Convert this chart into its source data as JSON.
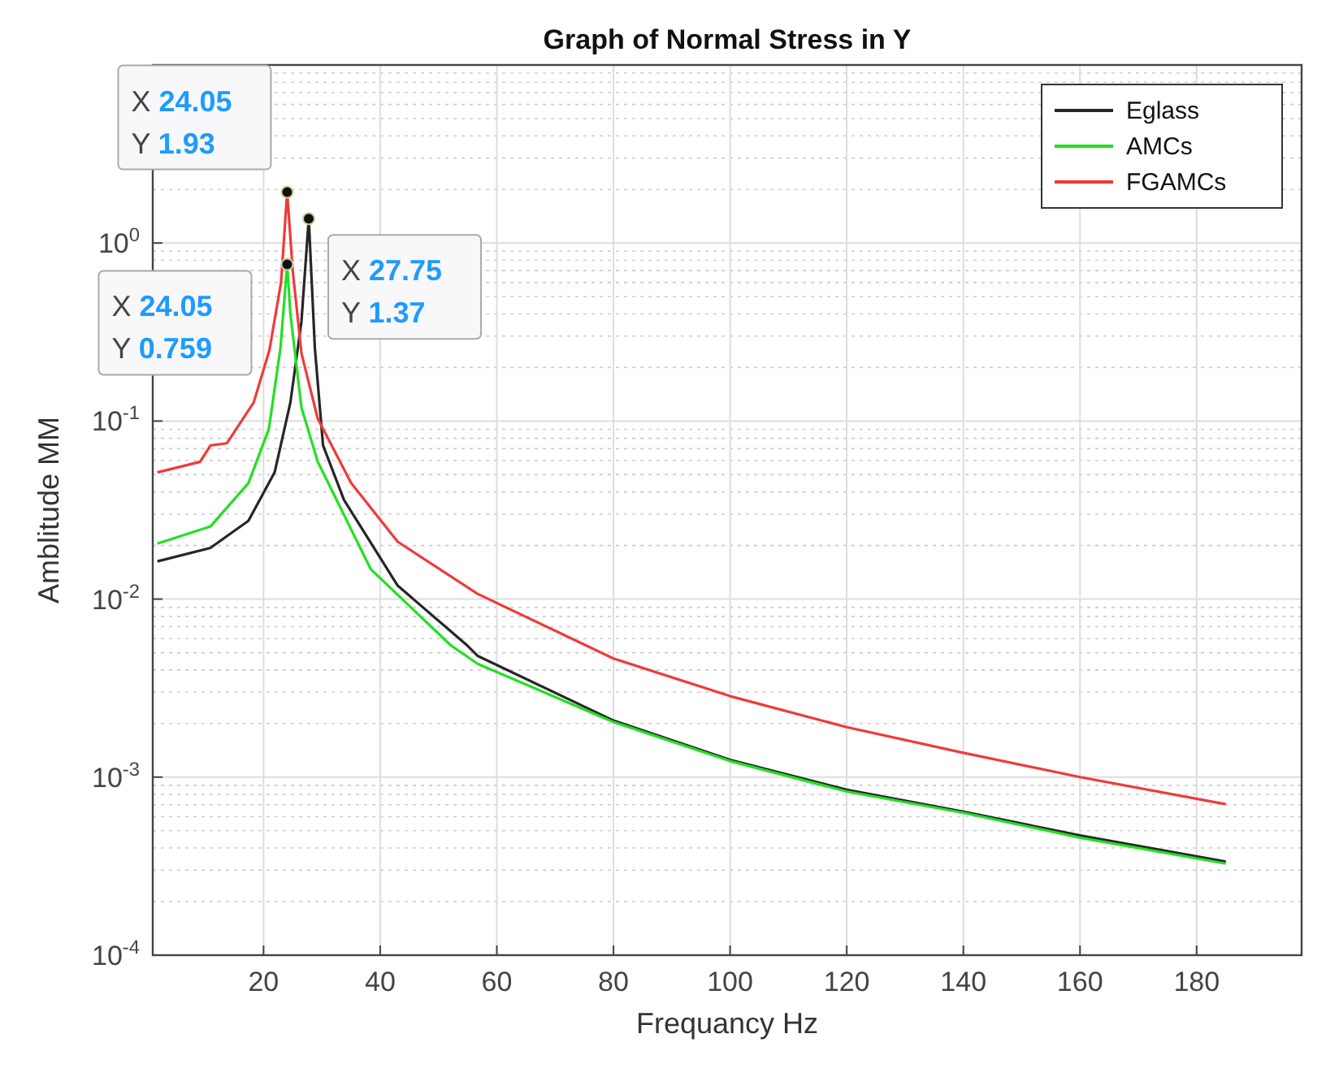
{
  "chart_data": {
    "type": "line",
    "title": "Graph of Normal Stress in Y",
    "xlabel": "Frequancy Hz",
    "ylabel": "Amblitude MM",
    "log": "y",
    "grid": true,
    "legend": "top right",
    "xlim": [
      1,
      198
    ],
    "xticks": [
      20,
      40,
      60,
      80,
      100,
      120,
      140,
      160,
      180
    ],
    "ylim": [
      0.0001,
      10
    ],
    "yticks": [
      {
        "value": 0.0001,
        "label": "10$^{-4}$"
      },
      {
        "value": 0.001,
        "label": "10$^{-3}$"
      },
      {
        "value": 0.01,
        "label": "10$^{-2}$"
      },
      {
        "value": 0.1,
        "label": "10$^{-1}$"
      },
      {
        "value": 1,
        "label": "10$^{0}$"
      }
    ],
    "series": [
      {
        "name": "Eglass",
        "color": "#262626",
        "x": [
          1.8,
          10.9,
          17.4,
          21.9,
          24.6,
          26.5,
          27.75,
          28.8,
          30.2,
          33.8,
          43,
          54.9,
          56.7,
          80,
          100,
          120,
          140,
          160,
          185
        ],
        "values": [
          0.0163,
          0.0194,
          0.0275,
          0.0515,
          0.127,
          0.363,
          1.37,
          0.256,
          0.073,
          0.036,
          0.0119,
          0.0055,
          0.0048,
          0.00208,
          0.00125,
          0.00085,
          0.00064,
          0.00047,
          0.000335
        ]
      },
      {
        "name": "AMCs",
        "color": "#22e022",
        "x": [
          1.8,
          10.9,
          17.4,
          20.9,
          22.9,
          24.05,
          24.6,
          26.5,
          29.3,
          38.4,
          52.1,
          56.7,
          80,
          100,
          120,
          140,
          160,
          185
        ],
        "values": [
          0.0205,
          0.0256,
          0.0448,
          0.09,
          0.257,
          0.759,
          0.4,
          0.119,
          0.059,
          0.0147,
          0.0055,
          0.00433,
          0.00204,
          0.00123,
          0.00083,
          0.00063,
          0.000457,
          0.000327
        ]
      },
      {
        "name": "FGAMCs",
        "color": "#f03a3a",
        "x": [
          1.8,
          9.1,
          10.9,
          13.7,
          18.3,
          21,
          23,
          24.05,
          25,
          26.5,
          29.3,
          35,
          43,
          56.7,
          80,
          100,
          120,
          140,
          160,
          185
        ],
        "values": [
          0.0515,
          0.059,
          0.073,
          0.075,
          0.127,
          0.25,
          0.6,
          1.93,
          0.7,
          0.24,
          0.103,
          0.045,
          0.021,
          0.0107,
          0.00464,
          0.00285,
          0.00191,
          0.00137,
          0.001,
          0.000705
        ]
      },
      {
        "type": "scatter",
        "color": "#111111",
        "marker": "circle",
        "x": [
          24.05,
          24.05,
          27.75
        ],
        "values": [
          1.93,
          0.759,
          1.37
        ]
      }
    ],
    "annotations": [
      "X 24.05\nY 1.93",
      "X 24.05\nY 0.759",
      "X 27.75\nY 1.37"
    ]
  }
}
